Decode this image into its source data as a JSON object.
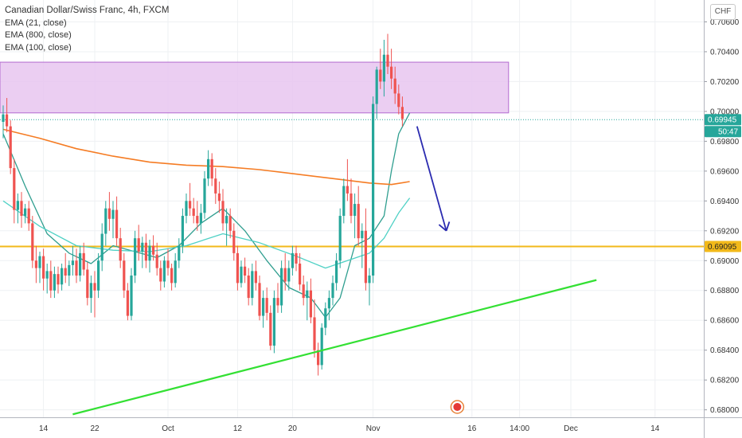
{
  "legend": {
    "title": "Canadian Dollar/Swiss Franc, 4h, FXCM",
    "ema21": "EMA (21, close)",
    "ema800": "EMA (800, close)",
    "ema100": "EMA (100, close)"
  },
  "currency_button": "CHF",
  "colors": {
    "up": "#26a69a",
    "down": "#ef5350",
    "ema21": "#2f9e8f",
    "ema100": "#4fd1c5",
    "ema800": "#f57c24",
    "zone_fill": "#e8c6f0",
    "zone_stroke": "#b36ad0",
    "support": "#f2b91a",
    "trend": "#33e033",
    "arrow": "#2b2bb0",
    "grid": "#eef0f3"
  },
  "chart_data": {
    "type": "candlestick",
    "symbol": "CADCHF",
    "timeframe": "4h",
    "ylim": [
      0.6795,
      0.7072
    ],
    "y_ticks": [
      "0.70600",
      "0.70400",
      "0.70200",
      "0.70000",
      "0.69800",
      "0.69600",
      "0.69400",
      "0.69200",
      "0.69000",
      "0.68800",
      "0.68600",
      "0.68400",
      "0.68200",
      "0.68000"
    ],
    "x_ticks": [
      {
        "label": "14",
        "slot": 11
      },
      {
        "label": "22",
        "slot": 25
      },
      {
        "label": "Oct",
        "slot": 45
      },
      {
        "label": "12",
        "slot": 64
      },
      {
        "label": "20",
        "slot": 79
      },
      {
        "label": "Nov",
        "slot": 101
      },
      {
        "label": "16",
        "slot": 128
      },
      {
        "label": "14:00",
        "slot": 141
      },
      {
        "label": "Dec",
        "slot": 155
      },
      {
        "label": "14",
        "slot": 178
      }
    ],
    "slots": 200,
    "candles": [
      [
        0.6993,
        0.7004,
        0.6982,
        0.6998
      ],
      [
        0.6998,
        0.7009,
        0.6986,
        0.699
      ],
      [
        0.699,
        0.6994,
        0.6958,
        0.6962
      ],
      [
        0.6962,
        0.6968,
        0.6925,
        0.6934
      ],
      [
        0.6934,
        0.6945,
        0.6925,
        0.694
      ],
      [
        0.694,
        0.6946,
        0.6922,
        0.693
      ],
      [
        0.693,
        0.6938,
        0.6925,
        0.6935
      ],
      [
        0.6935,
        0.694,
        0.692,
        0.6925
      ],
      [
        0.6925,
        0.693,
        0.6895,
        0.69
      ],
      [
        0.69,
        0.691,
        0.6885,
        0.6895
      ],
      [
        0.6895,
        0.6906,
        0.6885,
        0.6903
      ],
      [
        0.6903,
        0.6908,
        0.688,
        0.6888
      ],
      [
        0.6888,
        0.6898,
        0.6878,
        0.6893
      ],
      [
        0.6893,
        0.69,
        0.6875,
        0.688
      ],
      [
        0.688,
        0.6896,
        0.6875,
        0.6891
      ],
      [
        0.6891,
        0.6896,
        0.6878,
        0.6884
      ],
      [
        0.6884,
        0.6898,
        0.688,
        0.6895
      ],
      [
        0.6895,
        0.6905,
        0.6885,
        0.689
      ],
      [
        0.689,
        0.69,
        0.6883,
        0.6897
      ],
      [
        0.6897,
        0.691,
        0.689,
        0.69
      ],
      [
        0.69,
        0.6908,
        0.6885,
        0.689
      ],
      [
        0.689,
        0.691,
        0.6886,
        0.6905
      ],
      [
        0.6905,
        0.6912,
        0.689,
        0.6894
      ],
      [
        0.6894,
        0.6899,
        0.687,
        0.6875
      ],
      [
        0.6875,
        0.689,
        0.6865,
        0.6885
      ],
      [
        0.6885,
        0.6893,
        0.6862,
        0.688
      ],
      [
        0.688,
        0.6905,
        0.6875,
        0.69
      ],
      [
        0.69,
        0.6925,
        0.6893,
        0.6918
      ],
      [
        0.6918,
        0.694,
        0.691,
        0.6935
      ],
      [
        0.6935,
        0.6946,
        0.692,
        0.6928
      ],
      [
        0.6928,
        0.694,
        0.6915,
        0.6934
      ],
      [
        0.6934,
        0.6943,
        0.691,
        0.6915
      ],
      [
        0.6915,
        0.6922,
        0.6895,
        0.69
      ],
      [
        0.69,
        0.6905,
        0.6875,
        0.688
      ],
      [
        0.688,
        0.6885,
        0.686,
        0.6863
      ],
      [
        0.6863,
        0.6895,
        0.686,
        0.689
      ],
      [
        0.689,
        0.692,
        0.6885,
        0.6915
      ],
      [
        0.6915,
        0.6924,
        0.69,
        0.6906
      ],
      [
        0.6906,
        0.6916,
        0.6895,
        0.6912
      ],
      [
        0.6912,
        0.6918,
        0.6895,
        0.69
      ],
      [
        0.69,
        0.6914,
        0.6892,
        0.691
      ],
      [
        0.691,
        0.6917,
        0.69,
        0.6904
      ],
      [
        0.6904,
        0.6912,
        0.689,
        0.6895
      ],
      [
        0.6895,
        0.69,
        0.688,
        0.6886
      ],
      [
        0.6886,
        0.6903,
        0.6882,
        0.69
      ],
      [
        0.69,
        0.6908,
        0.689,
        0.6895
      ],
      [
        0.6895,
        0.6898,
        0.688,
        0.6885
      ],
      [
        0.6885,
        0.6905,
        0.6882,
        0.69
      ],
      [
        0.69,
        0.6915,
        0.6895,
        0.691
      ],
      [
        0.691,
        0.6935,
        0.6905,
        0.693
      ],
      [
        0.693,
        0.6945,
        0.6925,
        0.694
      ],
      [
        0.694,
        0.6952,
        0.693,
        0.6935
      ],
      [
        0.6935,
        0.6942,
        0.6925,
        0.693
      ],
      [
        0.693,
        0.694,
        0.692,
        0.6925
      ],
      [
        0.6925,
        0.6938,
        0.6918,
        0.6932
      ],
      [
        0.6932,
        0.696,
        0.6928,
        0.6955
      ],
      [
        0.6955,
        0.6974,
        0.695,
        0.6968
      ],
      [
        0.6968,
        0.6972,
        0.695,
        0.6955
      ],
      [
        0.6955,
        0.6962,
        0.6938,
        0.6945
      ],
      [
        0.6945,
        0.6953,
        0.6932,
        0.694
      ],
      [
        0.694,
        0.6948,
        0.692,
        0.6925
      ],
      [
        0.6925,
        0.6935,
        0.691,
        0.693
      ],
      [
        0.693,
        0.6935,
        0.6915,
        0.692
      ],
      [
        0.692,
        0.6925,
        0.69,
        0.6905
      ],
      [
        0.6905,
        0.691,
        0.688,
        0.6885
      ],
      [
        0.6885,
        0.69,
        0.6882,
        0.6896
      ],
      [
        0.6896,
        0.6902,
        0.6885,
        0.689
      ],
      [
        0.689,
        0.6895,
        0.687,
        0.6875
      ],
      [
        0.6875,
        0.6898,
        0.687,
        0.6893
      ],
      [
        0.6893,
        0.69,
        0.688,
        0.6885
      ],
      [
        0.6885,
        0.689,
        0.686,
        0.6863
      ],
      [
        0.6863,
        0.688,
        0.6855,
        0.6875
      ],
      [
        0.6875,
        0.6882,
        0.686,
        0.6865
      ],
      [
        0.6865,
        0.687,
        0.684,
        0.6843
      ],
      [
        0.6843,
        0.688,
        0.6838,
        0.6875
      ],
      [
        0.6875,
        0.6885,
        0.6865,
        0.687
      ],
      [
        0.687,
        0.69,
        0.6865,
        0.6895
      ],
      [
        0.6895,
        0.6905,
        0.688,
        0.6886
      ],
      [
        0.6886,
        0.69,
        0.688,
        0.6895
      ],
      [
        0.6895,
        0.691,
        0.689,
        0.6905
      ],
      [
        0.6905,
        0.691,
        0.6893,
        0.6898
      ],
      [
        0.6898,
        0.6905,
        0.688,
        0.6884
      ],
      [
        0.6884,
        0.689,
        0.687,
        0.6875
      ],
      [
        0.6875,
        0.6886,
        0.686,
        0.688
      ],
      [
        0.688,
        0.6888,
        0.6858,
        0.6862
      ],
      [
        0.6862,
        0.6874,
        0.6835,
        0.684
      ],
      [
        0.684,
        0.6845,
        0.6823,
        0.683
      ],
      [
        0.683,
        0.6858,
        0.6827,
        0.6855
      ],
      [
        0.6855,
        0.6872,
        0.685,
        0.6868
      ],
      [
        0.6868,
        0.688,
        0.686,
        0.6875
      ],
      [
        0.6875,
        0.689,
        0.687,
        0.6885
      ],
      [
        0.6885,
        0.6905,
        0.688,
        0.69
      ],
      [
        0.69,
        0.6935,
        0.6895,
        0.693
      ],
      [
        0.693,
        0.6955,
        0.6925,
        0.695
      ],
      [
        0.695,
        0.6968,
        0.694,
        0.6945
      ],
      [
        0.6945,
        0.6955,
        0.6925,
        0.693
      ],
      [
        0.693,
        0.6945,
        0.6915,
        0.6938
      ],
      [
        0.6938,
        0.695,
        0.691,
        0.6915
      ],
      [
        0.6915,
        0.6925,
        0.6895,
        0.692
      ],
      [
        0.692,
        0.6935,
        0.688,
        0.6885
      ],
      [
        0.6885,
        0.6895,
        0.687,
        0.689
      ],
      [
        0.689,
        0.701,
        0.6885,
        0.7005
      ],
      [
        0.7005,
        0.703,
        0.6995,
        0.7028
      ],
      [
        0.7028,
        0.7042,
        0.7015,
        0.702
      ],
      [
        0.702,
        0.7048,
        0.701,
        0.7038
      ],
      [
        0.7038,
        0.7052,
        0.7025,
        0.703
      ],
      [
        0.703,
        0.7042,
        0.7015,
        0.7022
      ],
      [
        0.7022,
        0.703,
        0.7005,
        0.7012
      ],
      [
        0.7012,
        0.7018,
        0.6998,
        0.7003
      ],
      [
        0.7003,
        0.701,
        0.699,
        0.6995
      ]
    ],
    "series": [
      {
        "id": "ema21",
        "points": [
          [
            0,
            0.6985
          ],
          [
            6,
            0.695
          ],
          [
            12,
            0.6918
          ],
          [
            18,
            0.6905
          ],
          [
            24,
            0.6898
          ],
          [
            30,
            0.691
          ],
          [
            36,
            0.6906
          ],
          [
            42,
            0.6902
          ],
          [
            48,
            0.691
          ],
          [
            54,
            0.6925
          ],
          [
            60,
            0.6935
          ],
          [
            66,
            0.692
          ],
          [
            72,
            0.69
          ],
          [
            78,
            0.6882
          ],
          [
            84,
            0.6875
          ],
          [
            88,
            0.6862
          ],
          [
            92,
            0.6875
          ],
          [
            96,
            0.691
          ],
          [
            100,
            0.6915
          ],
          [
            104,
            0.693
          ],
          [
            106,
            0.696
          ],
          [
            108,
            0.6985
          ],
          [
            111,
            0.6999
          ]
        ]
      },
      {
        "id": "ema100",
        "points": [
          [
            0,
            0.694
          ],
          [
            10,
            0.6923
          ],
          [
            20,
            0.691
          ],
          [
            30,
            0.6907
          ],
          [
            40,
            0.6906
          ],
          [
            50,
            0.691
          ],
          [
            60,
            0.6918
          ],
          [
            70,
            0.6912
          ],
          [
            80,
            0.6903
          ],
          [
            88,
            0.6895
          ],
          [
            94,
            0.69
          ],
          [
            100,
            0.6905
          ],
          [
            104,
            0.6915
          ],
          [
            108,
            0.6932
          ],
          [
            111,
            0.6942
          ]
        ]
      },
      {
        "id": "ema800",
        "points": [
          [
            0,
            0.6988
          ],
          [
            10,
            0.6982
          ],
          [
            20,
            0.6975
          ],
          [
            30,
            0.697
          ],
          [
            40,
            0.6966
          ],
          [
            50,
            0.6964
          ],
          [
            60,
            0.6963
          ],
          [
            70,
            0.6961
          ],
          [
            80,
            0.6958
          ],
          [
            90,
            0.6955
          ],
          [
            100,
            0.6952
          ],
          [
            106,
            0.6951
          ],
          [
            111,
            0.6953
          ]
        ]
      }
    ],
    "resistance_zone": {
      "top": 0.7033,
      "bottom": 0.6999,
      "start_slot": 0,
      "end_slot": 138
    },
    "support_level": 0.69095,
    "trendline": {
      "from": [
        19,
        0.6797
      ],
      "to": [
        162,
        0.6887
      ]
    },
    "arrow": {
      "from": [
        113,
        0.699
      ],
      "to": [
        121,
        0.692
      ]
    },
    "price_labels": [
      {
        "text": "0.69945",
        "value": 0.69945,
        "color": "#26a69a"
      },
      {
        "text": "50:47",
        "value": 0.69852,
        "color": "#26a69a"
      },
      {
        "text": "0.69095",
        "value": 0.69095,
        "color": "#f2b91a"
      }
    ]
  }
}
